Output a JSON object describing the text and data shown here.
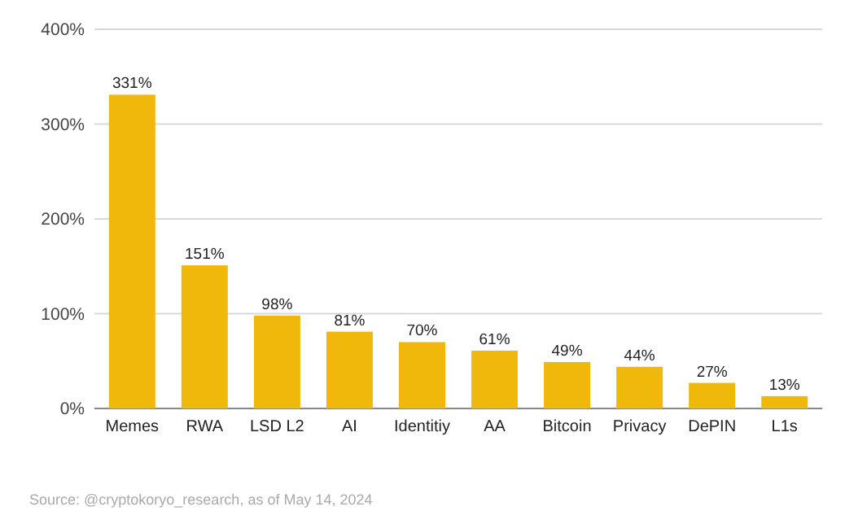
{
  "chart_data": {
    "type": "bar",
    "categories": [
      "Memes",
      "RWA",
      "LSD L2",
      "AI",
      "Identitiy",
      "AA",
      "Bitcoin",
      "Privacy",
      "DePIN",
      "L1s"
    ],
    "values": [
      331,
      151,
      98,
      81,
      70,
      61,
      49,
      44,
      27,
      13
    ],
    "value_labels": [
      "331%",
      "151%",
      "98%",
      "81%",
      "70%",
      "61%",
      "49%",
      "44%",
      "27%",
      "13%"
    ],
    "color": "#f1b80c",
    "ylim": [
      0,
      400
    ],
    "yticks": [
      {
        "value": 0,
        "label": "0%"
      },
      {
        "value": 100,
        "label": "100%"
      },
      {
        "value": 200,
        "label": "200%"
      },
      {
        "value": 300,
        "label": "300%"
      },
      {
        "value": 400,
        "label": "400%"
      }
    ],
    "grid": "y",
    "annotations": [
      "Source: @cryptokoryo_research, as of May 14, 2024"
    ]
  }
}
